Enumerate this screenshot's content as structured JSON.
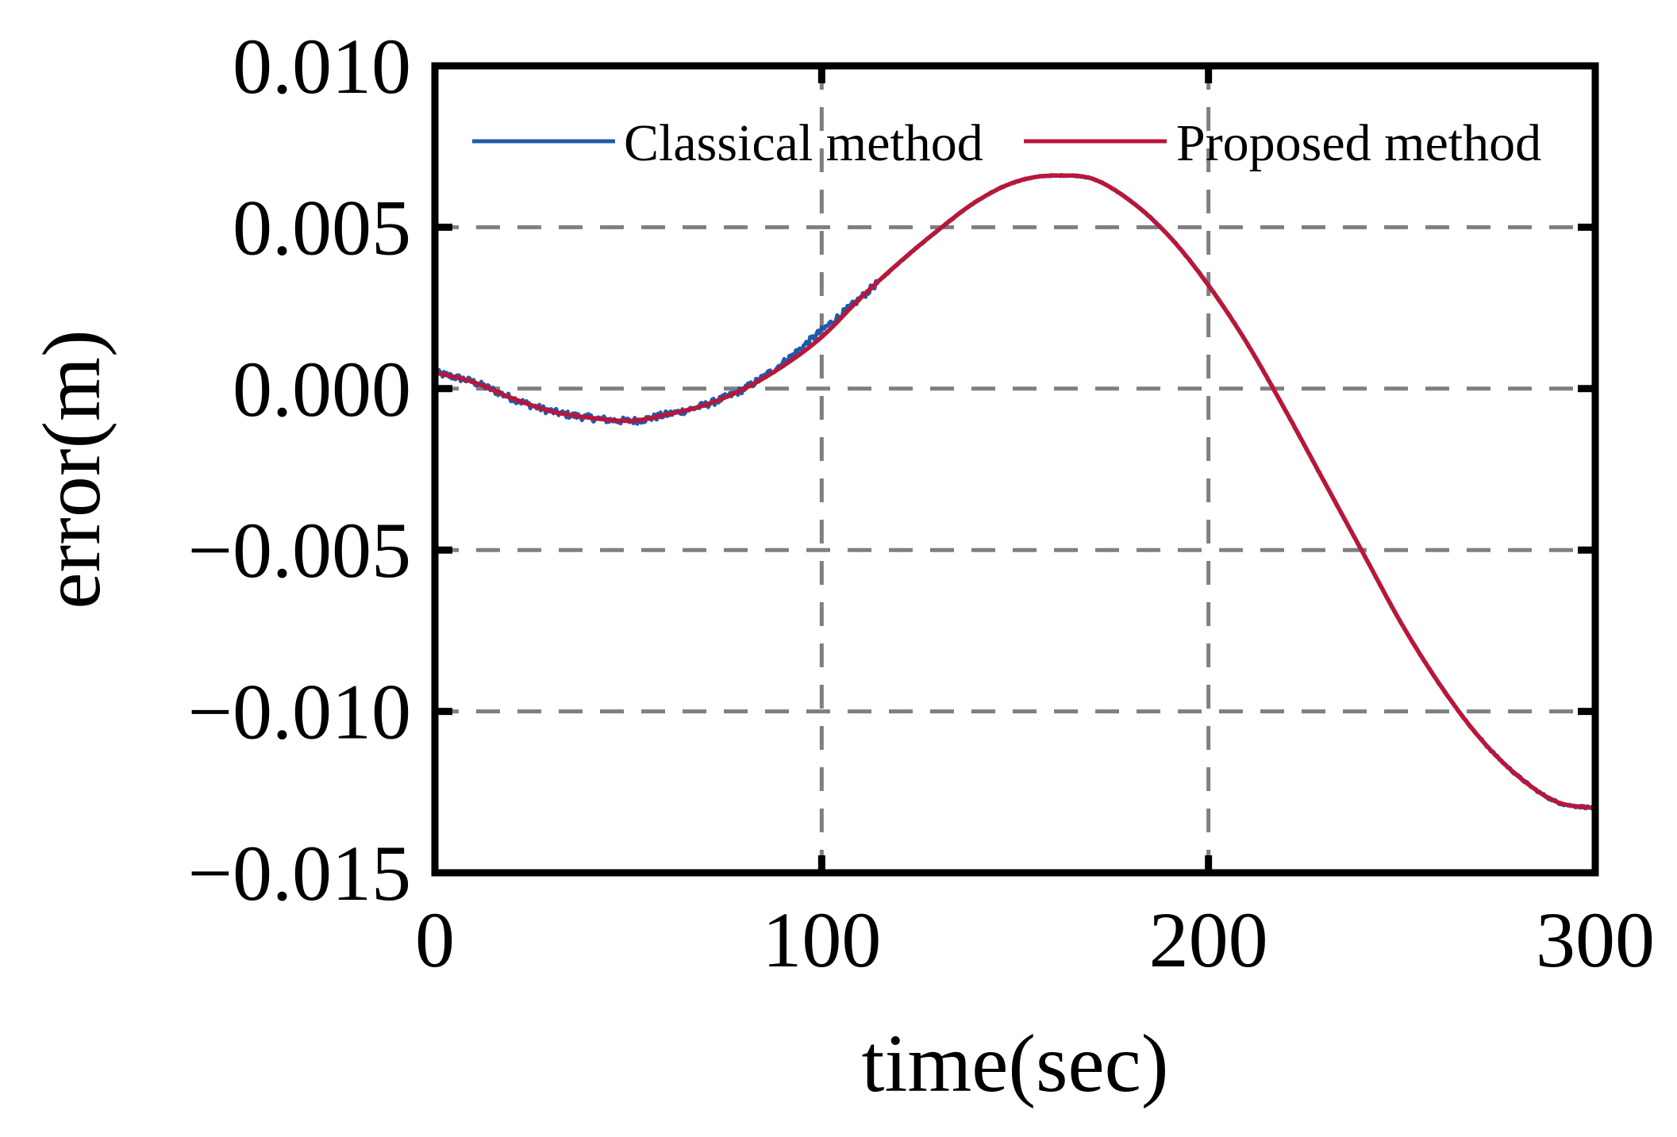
{
  "chart_data": {
    "type": "line",
    "title": "",
    "xlabel": "time(sec)",
    "ylabel": "error(m)",
    "xlim": [
      0,
      300
    ],
    "ylim": [
      -0.015,
      0.01
    ],
    "x_ticks": [
      0,
      100,
      200,
      300
    ],
    "x_tick_labels": [
      "0",
      "100",
      "200",
      "300"
    ],
    "y_ticks": [
      0.01,
      0.005,
      0.0,
      -0.005,
      -0.01,
      -0.015
    ],
    "y_tick_labels": [
      "0.010",
      "0.005",
      "0.000",
      "−0.005",
      "−0.010",
      "−0.015"
    ],
    "grid": true,
    "grid_style": "dashed",
    "legend_position": "top",
    "series": [
      {
        "name": "Classical method",
        "color": "#1f5aad",
        "noisy": true,
        "x": [
          0,
          10,
          20,
          30,
          40,
          50,
          60,
          70,
          80,
          90,
          100,
          110,
          120,
          130,
          140,
          150,
          160,
          170,
          180,
          190,
          200,
          210,
          220,
          230,
          240,
          250,
          260,
          270,
          280,
          290,
          300
        ],
        "y": [
          0.0005,
          0.0002,
          -0.0003,
          -0.0007,
          -0.0009,
          -0.001,
          -0.0008,
          -0.0005,
          0.0,
          0.0008,
          0.0018,
          0.0028,
          0.0039,
          0.0049,
          0.0058,
          0.0064,
          0.0066,
          0.0065,
          0.0058,
          0.0047,
          0.0032,
          0.0014,
          -0.0007,
          -0.0029,
          -0.0051,
          -0.0073,
          -0.0092,
          -0.0108,
          -0.012,
          -0.0128,
          -0.013
        ]
      },
      {
        "name": "Proposed method",
        "color": "#b8173a",
        "noisy": false,
        "x": [
          0,
          10,
          20,
          30,
          40,
          50,
          60,
          70,
          80,
          90,
          100,
          110,
          120,
          130,
          140,
          150,
          160,
          170,
          180,
          190,
          200,
          210,
          220,
          230,
          240,
          250,
          260,
          270,
          280,
          290,
          300
        ],
        "y": [
          0.0005,
          0.0002,
          -0.0003,
          -0.0007,
          -0.0009,
          -0.001,
          -0.0008,
          -0.0005,
          0.0,
          0.0007,
          0.0016,
          0.0028,
          0.0039,
          0.0049,
          0.0058,
          0.0064,
          0.0066,
          0.0065,
          0.0058,
          0.0047,
          0.0032,
          0.0014,
          -0.0007,
          -0.0029,
          -0.0051,
          -0.0073,
          -0.0092,
          -0.0108,
          -0.012,
          -0.0128,
          -0.013
        ]
      }
    ]
  }
}
